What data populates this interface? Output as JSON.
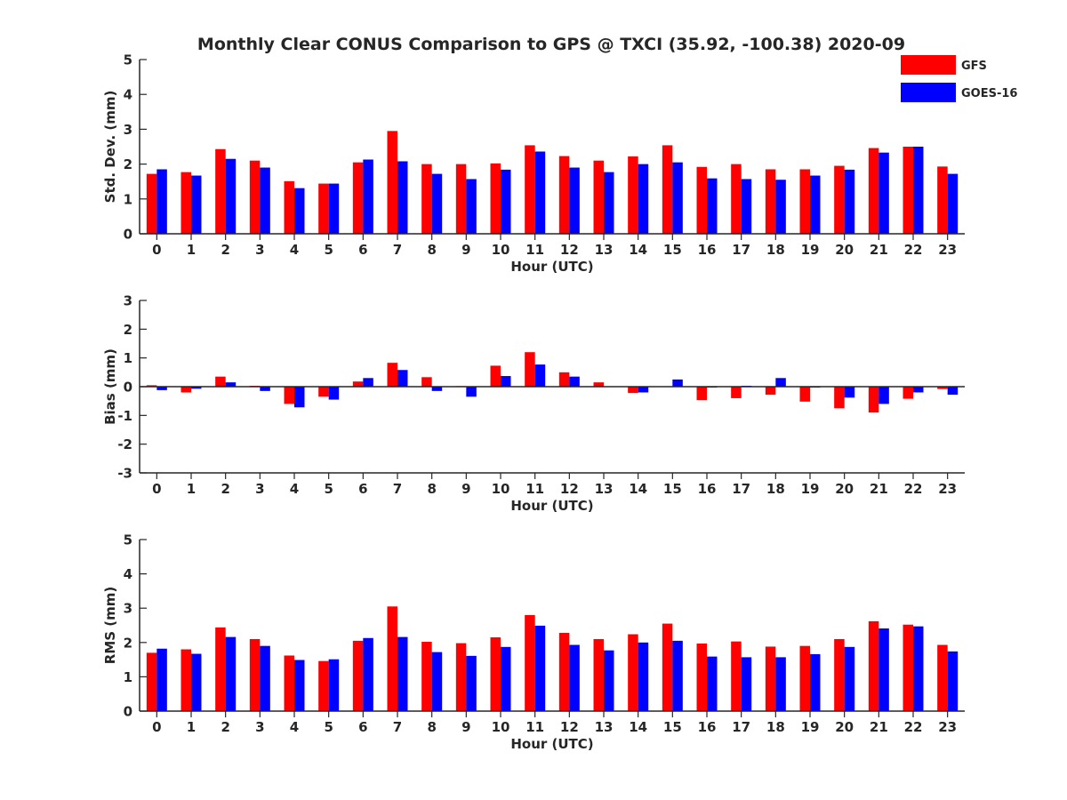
{
  "title": "Monthly Clear CONUS Comparison to GPS @ TXCI (35.92, -100.38) 2020-09",
  "legend": {
    "placement": "top-right",
    "entries": [
      {
        "label": "GFS",
        "color": "#ff0000"
      },
      {
        "label": "GOES-16",
        "color": "#0000ff"
      }
    ]
  },
  "chart_data": [
    {
      "type": "bar",
      "xlabel": "Hour (UTC)",
      "ylabel": "Std. Dev. (mm)",
      "ylim": [
        0,
        5
      ],
      "yticks": [
        0,
        1,
        2,
        3,
        4,
        5
      ],
      "grid": false,
      "categories": [
        "0",
        "1",
        "2",
        "3",
        "4",
        "5",
        "6",
        "7",
        "8",
        "9",
        "10",
        "11",
        "12",
        "13",
        "14",
        "15",
        "16",
        "17",
        "18",
        "19",
        "20",
        "21",
        "22",
        "23"
      ],
      "series": [
        {
          "name": "GFS",
          "color": "#ff0000",
          "values": [
            1.72,
            1.77,
            2.43,
            2.1,
            1.51,
            1.44,
            2.05,
            2.95,
            2.0,
            2.0,
            2.02,
            2.54,
            2.23,
            2.1,
            2.22,
            2.54,
            1.92,
            2.0,
            1.85,
            1.85,
            1.95,
            2.46,
            2.5,
            1.93
          ]
        },
        {
          "name": "GOES-16",
          "color": "#0000ff",
          "values": [
            1.85,
            1.67,
            2.15,
            1.9,
            1.31,
            1.44,
            2.13,
            2.08,
            1.72,
            1.57,
            1.84,
            2.36,
            1.9,
            1.77,
            2.0,
            2.05,
            1.59,
            1.57,
            1.55,
            1.67,
            1.84,
            2.33,
            2.5,
            1.72
          ]
        }
      ]
    },
    {
      "type": "bar",
      "xlabel": "Hour (UTC)",
      "ylabel": "Bias (mm)",
      "ylim": [
        -3,
        3
      ],
      "yticks": [
        -3,
        -2,
        -1,
        0,
        1,
        2,
        3
      ],
      "grid": false,
      "zero_line": true,
      "categories": [
        "0",
        "1",
        "2",
        "3",
        "4",
        "5",
        "6",
        "7",
        "8",
        "9",
        "10",
        "11",
        "12",
        "13",
        "14",
        "15",
        "16",
        "17",
        "18",
        "19",
        "20",
        "21",
        "22",
        "23"
      ],
      "series": [
        {
          "name": "GFS",
          "color": "#ff0000",
          "values": [
            0.05,
            -0.2,
            0.35,
            0.03,
            -0.6,
            -0.35,
            0.18,
            0.83,
            0.33,
            0.02,
            0.73,
            1.2,
            0.5,
            0.15,
            -0.22,
            0.0,
            -0.47,
            -0.4,
            -0.28,
            -0.52,
            -0.75,
            -0.9,
            -0.42,
            -0.08
          ]
        },
        {
          "name": "GOES-16",
          "color": "#0000ff",
          "values": [
            -0.12,
            -0.07,
            0.15,
            -0.15,
            -0.72,
            -0.45,
            0.3,
            0.58,
            -0.15,
            -0.35,
            0.37,
            0.77,
            0.35,
            0.0,
            -0.2,
            0.25,
            -0.03,
            0.03,
            0.3,
            -0.03,
            -0.38,
            -0.6,
            -0.2,
            -0.28
          ]
        }
      ]
    },
    {
      "type": "bar",
      "xlabel": "Hour (UTC)",
      "ylabel": "RMS (mm)",
      "ylim": [
        0,
        5
      ],
      "yticks": [
        0,
        1,
        2,
        3,
        4,
        5
      ],
      "grid": false,
      "categories": [
        "0",
        "1",
        "2",
        "3",
        "4",
        "5",
        "6",
        "7",
        "8",
        "9",
        "10",
        "11",
        "12",
        "13",
        "14",
        "15",
        "16",
        "17",
        "18",
        "19",
        "20",
        "21",
        "22",
        "23"
      ],
      "series": [
        {
          "name": "GFS",
          "color": "#ff0000",
          "values": [
            1.7,
            1.8,
            2.44,
            2.1,
            1.62,
            1.46,
            2.05,
            3.05,
            2.02,
            1.98,
            2.15,
            2.8,
            2.28,
            2.1,
            2.24,
            2.55,
            1.97,
            2.03,
            1.88,
            1.9,
            2.1,
            2.62,
            2.52,
            1.93
          ]
        },
        {
          "name": "GOES-16",
          "color": "#0000ff",
          "values": [
            1.82,
            1.67,
            2.16,
            1.9,
            1.49,
            1.51,
            2.13,
            2.16,
            1.72,
            1.61,
            1.87,
            2.49,
            1.93,
            1.77,
            2.0,
            2.05,
            1.59,
            1.57,
            1.57,
            1.66,
            1.87,
            2.41,
            2.47,
            1.74
          ]
        }
      ]
    }
  ]
}
